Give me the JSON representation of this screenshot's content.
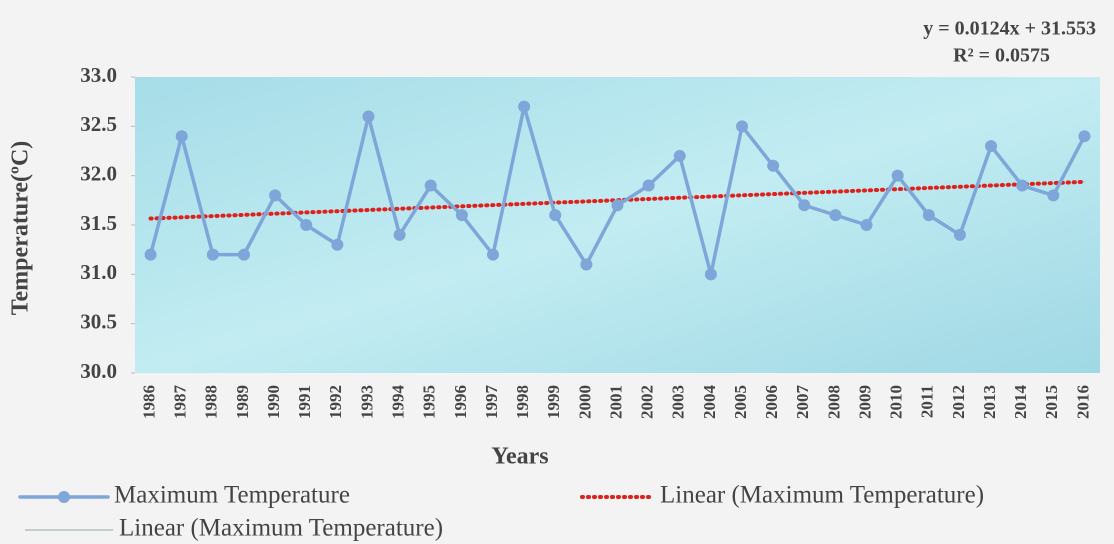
{
  "chart_data": {
    "type": "line",
    "x_label": "Years",
    "y_label": "Temperature(ºC)",
    "annotations": [
      "y = 0.0124x + 31.553",
      "R² = 0.0575"
    ],
    "categories": [
      "1986",
      "1987",
      "1988",
      "1989",
      "1990",
      "1991",
      "1992",
      "1993",
      "1994",
      "1995",
      "1996",
      "1997",
      "1998",
      "1999",
      "2000",
      "2001",
      "2002",
      "2003",
      "2004",
      "2005",
      "2006",
      "2007",
      "2008",
      "2009",
      "2010",
      "2011",
      "2012",
      "2013",
      "2014",
      "2015",
      "2016"
    ],
    "series": [
      {
        "name": "Maximum Temperature",
        "color": "#7ea6d8",
        "line_style": "solid",
        "marker": true,
        "values": [
          31.2,
          32.4,
          31.2,
          31.2,
          31.8,
          31.5,
          31.3,
          32.6,
          31.4,
          31.9,
          31.6,
          31.2,
          32.7,
          31.6,
          31.1,
          31.7,
          31.9,
          32.2,
          31.0,
          32.5,
          32.1,
          31.7,
          31.6,
          31.5,
          32.0,
          31.6,
          31.4,
          32.3,
          31.9,
          31.8,
          32.4
        ]
      },
      {
        "name": "Linear (Maximum Temperature)",
        "color": "#e0201b",
        "line_style": "dotted",
        "marker": false,
        "values": [
          31.5654,
          31.5778,
          31.5902,
          31.6026,
          31.615,
          31.6274,
          31.6398,
          31.6522,
          31.6646,
          31.677,
          31.6894,
          31.7018,
          31.7142,
          31.7266,
          31.739,
          31.7514,
          31.7638,
          31.7762,
          31.7886,
          31.801,
          31.8134,
          31.8258,
          31.8382,
          31.8506,
          31.863,
          31.8754,
          31.8878,
          31.9002,
          31.9126,
          31.925,
          31.9374
        ]
      },
      {
        "name": "Linear (Maximum Temperature)",
        "color": "#a9b4b8",
        "line_style": "thin",
        "marker": false,
        "values": [
          31.5654,
          31.5778,
          31.5902,
          31.6026,
          31.615,
          31.6274,
          31.6398,
          31.6522,
          31.6646,
          31.677,
          31.6894,
          31.7018,
          31.7142,
          31.7266,
          31.739,
          31.7514,
          31.7638,
          31.7762,
          31.7886,
          31.801,
          31.8134,
          31.8258,
          31.8382,
          31.8506,
          31.863,
          31.8754,
          31.8878,
          31.9002,
          31.9126,
          31.925,
          31.9374
        ]
      }
    ],
    "ylim": [
      30,
      33
    ],
    "yticks": [
      {
        "value": 30,
        "label": "30.0"
      },
      30.5,
      {
        "value": 31,
        "label": "31.0"
      },
      31.5,
      {
        "value": 32,
        "label": "32.0"
      },
      32.5,
      {
        "value": 33,
        "label": "33.0"
      }
    ]
  }
}
